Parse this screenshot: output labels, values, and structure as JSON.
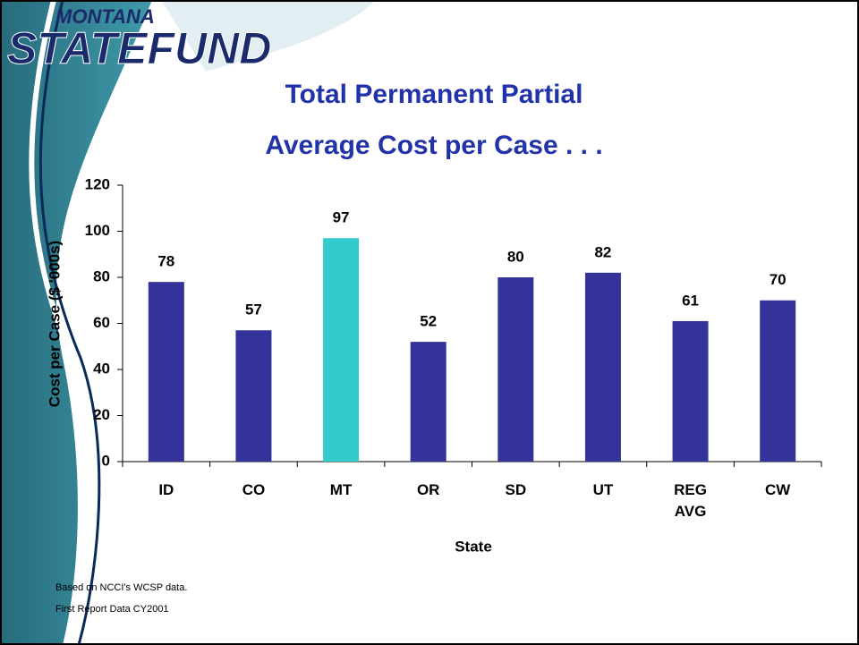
{
  "logo": {
    "top": "MONTANA",
    "main": "STATEFUND"
  },
  "chart_data": {
    "type": "bar",
    "title": [
      "Total Permanent Partial",
      "Average Cost per Case . . ."
    ],
    "categories": [
      "ID",
      "CO",
      "MT",
      "OR",
      "SD",
      "UT",
      "REG AVG",
      "CW"
    ],
    "values": [
      78,
      57,
      97,
      52,
      80,
      82,
      61,
      70
    ],
    "colors": [
      "#333399",
      "#333399",
      "#33cccc",
      "#333399",
      "#333399",
      "#333399",
      "#333399",
      "#333399"
    ],
    "ylim": [
      0,
      120
    ],
    "yticks": [
      0,
      20,
      40,
      60,
      80,
      100,
      120
    ],
    "x_label": "State",
    "y_label": "Cost per Case ($ '000s)",
    "notes": [
      "Based on NCCI's WCSP data.",
      "First Report Data CY2001"
    ]
  }
}
